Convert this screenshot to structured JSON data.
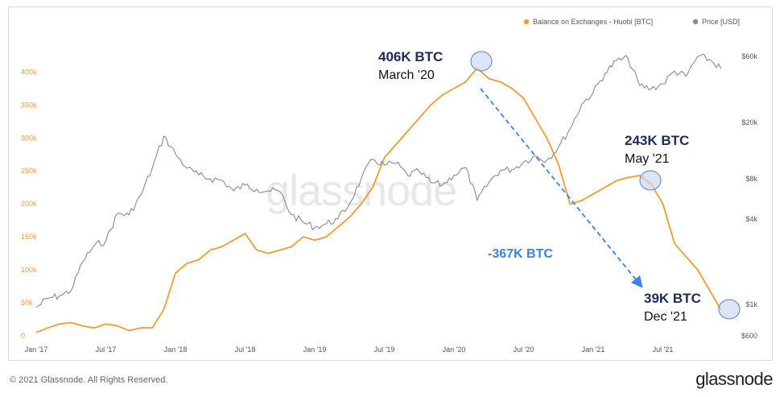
{
  "footer": {
    "copyright": "© 2021 Glassnode. All Rights Reserved.",
    "logo": "glassnode"
  },
  "watermark": "glassnode",
  "colors": {
    "balance": "#f29b30",
    "price": "#8a8a8a",
    "arrow": "#3b82e8",
    "circle_fill": "#c9d7ef",
    "circle_stroke": "#5b7fc7"
  },
  "chart_data": {
    "type": "line",
    "legend": [
      {
        "name": "Balance on Exchanges - Huobi [BTC]",
        "color": "#f29b30"
      },
      {
        "name": "Price [USD]",
        "color": "#8a8a8a"
      }
    ],
    "legend_position": "top-right",
    "grid": false,
    "x_ticks": [
      "Jan '17",
      "Jul '17",
      "Jan '18",
      "Jul '18",
      "Jan '19",
      "Jul '19",
      "Jan '20",
      "Jul '20",
      "Jan '21",
      "Jul '21"
    ],
    "y_left_ticks": [
      "0",
      "50k",
      "100k",
      "150k",
      "200k",
      "250k",
      "300k",
      "350k",
      "400k"
    ],
    "y_left_range": [
      0,
      420000
    ],
    "y_right_ticks": [
      "$600",
      "$1k",
      "$4k",
      "$8k",
      "$20k",
      "$60k"
    ],
    "y_right_scale": "log",
    "series": [
      {
        "name": "Balance on Exchanges - Huobi [BTC]",
        "axis": "left",
        "x": [
          "2017-01",
          "2017-02",
          "2017-03",
          "2017-04",
          "2017-05",
          "2017-06",
          "2017-07",
          "2017-08",
          "2017-09",
          "2017-10",
          "2017-11",
          "2017-12",
          "2018-01",
          "2018-02",
          "2018-03",
          "2018-04",
          "2018-05",
          "2018-06",
          "2018-07",
          "2018-08",
          "2018-09",
          "2018-10",
          "2018-11",
          "2018-12",
          "2019-01",
          "2019-02",
          "2019-03",
          "2019-04",
          "2019-05",
          "2019-06",
          "2019-07",
          "2019-08",
          "2019-09",
          "2019-10",
          "2019-11",
          "2019-12",
          "2020-01",
          "2020-02",
          "2020-03",
          "2020-04",
          "2020-05",
          "2020-06",
          "2020-07",
          "2020-08",
          "2020-09",
          "2020-10",
          "2020-11",
          "2020-12",
          "2021-01",
          "2021-02",
          "2021-03",
          "2021-04",
          "2021-05",
          "2021-06",
          "2021-07",
          "2021-08",
          "2021-09",
          "2021-10",
          "2021-11",
          "2021-12"
        ],
        "values": [
          5000,
          12000,
          18000,
          20000,
          15000,
          12000,
          18000,
          15000,
          8000,
          12000,
          12000,
          40000,
          95000,
          110000,
          115000,
          130000,
          135000,
          145000,
          155000,
          130000,
          125000,
          130000,
          135000,
          150000,
          145000,
          150000,
          165000,
          180000,
          200000,
          225000,
          270000,
          290000,
          310000,
          330000,
          350000,
          365000,
          375000,
          385000,
          406000,
          390000,
          385000,
          375000,
          360000,
          330000,
          300000,
          260000,
          200000,
          205000,
          215000,
          225000,
          235000,
          240000,
          243000,
          230000,
          200000,
          140000,
          120000,
          100000,
          70000,
          39000
        ]
      },
      {
        "name": "Price [USD]",
        "axis": "right",
        "x": [
          "2017-01",
          "2017-02",
          "2017-03",
          "2017-04",
          "2017-05",
          "2017-06",
          "2017-07",
          "2017-08",
          "2017-09",
          "2017-10",
          "2017-11",
          "2017-12",
          "2018-01",
          "2018-02",
          "2018-03",
          "2018-04",
          "2018-05",
          "2018-06",
          "2018-07",
          "2018-08",
          "2018-09",
          "2018-10",
          "2018-11",
          "2018-12",
          "2019-01",
          "2019-02",
          "2019-03",
          "2019-04",
          "2019-05",
          "2019-06",
          "2019-07",
          "2019-08",
          "2019-09",
          "2019-10",
          "2019-11",
          "2019-12",
          "2020-01",
          "2020-02",
          "2020-03",
          "2020-04",
          "2020-05",
          "2020-06",
          "2020-07",
          "2020-08",
          "2020-09",
          "2020-10",
          "2020-11",
          "2020-12",
          "2021-01",
          "2021-02",
          "2021-03",
          "2021-04",
          "2021-05",
          "2021-06",
          "2021-07",
          "2021-08",
          "2021-09",
          "2021-10",
          "2021-11",
          "2021-12"
        ],
        "values": [
          950,
          1100,
          1150,
          1250,
          2000,
          2600,
          2800,
          4400,
          4300,
          6000,
          9500,
          16000,
          12000,
          9500,
          8500,
          8000,
          7800,
          6500,
          7200,
          6700,
          6500,
          6400,
          4300,
          3800,
          3500,
          3700,
          4000,
          5200,
          8000,
          11000,
          10000,
          10300,
          8500,
          9000,
          7500,
          7200,
          8500,
          9600,
          5500,
          7500,
          9200,
          9300,
          10500,
          11600,
          10800,
          13400,
          18000,
          27000,
          33000,
          45000,
          56000,
          58000,
          37000,
          35000,
          38000,
          47000,
          43000,
          60000,
          57000,
          49000
        ]
      }
    ],
    "annotations": [
      {
        "bold": "406K BTC",
        "sub": "March '20",
        "x": "2020-03",
        "value": 406000
      },
      {
        "bold": "243K BTC",
        "sub": "May '21",
        "x": "2021-05",
        "value": 243000
      },
      {
        "bold": "39K BTC",
        "sub": "Dec '21",
        "x": "2021-12",
        "value": 39000
      },
      {
        "bold": "-367K BTC",
        "sub": "",
        "x": "2020-09",
        "value": 0
      }
    ]
  }
}
